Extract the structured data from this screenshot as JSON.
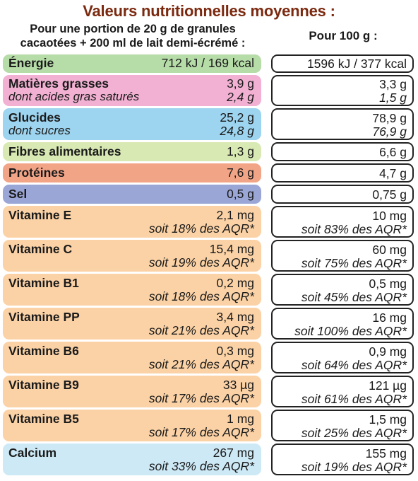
{
  "title": "Valeurs nutritionnelles moyennes :",
  "header": {
    "portion_line1": "Pour une portion de 20 g de granules",
    "portion_line2": "cacaotées + 200 ml de lait demi-écrémé :",
    "per100": "Pour 100 g :"
  },
  "colors": {
    "energie": "#b6dca8",
    "graisses": "#f2b1d3",
    "glucides": "#9dd4ef",
    "fibres": "#d9e9b4",
    "proteines": "#f2a487",
    "sel": "#9aa6d6",
    "vitamines": "#fbd2a6",
    "calcium": "#cde9f6"
  },
  "rows": {
    "energie": {
      "name": "Énergie",
      "portion": "712 kJ / 169 kcal",
      "per100": "1596 kJ / 377 kcal"
    },
    "graisses": {
      "name": "Matières grasses",
      "portion": "3,9 g",
      "per100": "3,3 g",
      "sub": "dont acides gras saturés",
      "sub_portion": "2,4 g",
      "sub_per100": "1,5 g"
    },
    "glucides": {
      "name": "Glucides",
      "portion": "25,2 g",
      "per100": "78,9 g",
      "sub": "dont sucres",
      "sub_portion": "24,8 g",
      "sub_per100": "76,9 g"
    },
    "fibres": {
      "name": "Fibres alimentaires",
      "portion": "1,3 g",
      "per100": "6,6 g"
    },
    "proteines": {
      "name": "Protéines",
      "portion": "7,6 g",
      "per100": "4,7 g"
    },
    "sel": {
      "name": "Sel",
      "portion": "0,5 g",
      "per100": "0,75 g"
    },
    "vit_e": {
      "name": "Vitamine E",
      "portion": "2,1 mg",
      "portion_aqr": "soit 18% des AQR*",
      "per100": "10 mg",
      "per100_aqr": "soit 83% des AQR*"
    },
    "vit_c": {
      "name": "Vitamine C",
      "portion": "15,4 mg",
      "portion_aqr": "soit 19% des AQR*",
      "per100": "60 mg",
      "per100_aqr": "soit 75% des AQR*"
    },
    "vit_b1": {
      "name": "Vitamine B1",
      "portion": "0,2 mg",
      "portion_aqr": "soit 18% des AQR*",
      "per100": "0,5 mg",
      "per100_aqr": "soit 45% des AQR*"
    },
    "vit_pp": {
      "name": "Vitamine PP",
      "portion": "3,4 mg",
      "portion_aqr": "soit 21% des AQR*",
      "per100": "16 mg",
      "per100_aqr": "soit 100% des AQR*"
    },
    "vit_b6": {
      "name": "Vitamine B6",
      "portion": "0,3 mg",
      "portion_aqr": "soit 21% des AQR*",
      "per100": "0,9 mg",
      "per100_aqr": "soit 64% des AQR*"
    },
    "vit_b9": {
      "name": "Vitamine B9",
      "portion": "33 µg",
      "portion_aqr": "soit 17% des AQR*",
      "per100": "121 µg",
      "per100_aqr": "soit 61% des AQR*"
    },
    "vit_b5": {
      "name": "Vitamine B5",
      "portion": "1 mg",
      "portion_aqr": "soit 17% des AQR*",
      "per100": "1,5 mg",
      "per100_aqr": "soit 25% des AQR*"
    },
    "calcium": {
      "name": "Calcium",
      "portion": "267 mg",
      "portion_aqr": "soit 33% des AQR*",
      "per100": "155 mg",
      "per100_aqr": "soit 19% des AQR*"
    }
  }
}
